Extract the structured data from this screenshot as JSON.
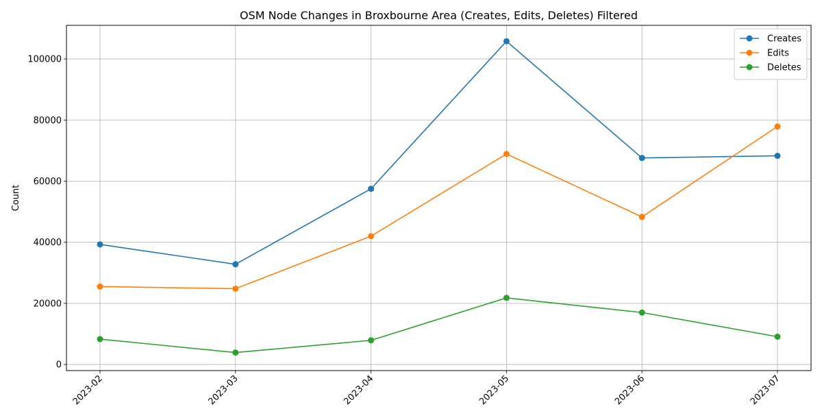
{
  "chart_data": {
    "type": "line",
    "title": "OSM Node Changes in Broxbourne Area (Creates, Edits, Deletes) Filtered",
    "xlabel": "",
    "ylabel": "Count",
    "categories": [
      "2023-02",
      "2023-03",
      "2023-04",
      "2023-05",
      "2023-06",
      "2023-07"
    ],
    "ylim": [
      -2000,
      111000
    ],
    "yticks": [
      0,
      20000,
      40000,
      60000,
      80000,
      100000
    ],
    "ytick_labels": [
      "0",
      "20000",
      "40000",
      "60000",
      "80000",
      "100000"
    ],
    "grid": true,
    "legend_position": "top-right",
    "series": [
      {
        "name": "Creates",
        "color": "#1f77b4",
        "values": [
          39300,
          32800,
          57500,
          105800,
          67600,
          68300
        ]
      },
      {
        "name": "Edits",
        "color": "#ff7f0e",
        "values": [
          25500,
          24800,
          42000,
          68900,
          48300,
          77900
        ]
      },
      {
        "name": "Deletes",
        "color": "#2ca02c",
        "values": [
          8300,
          3900,
          7900,
          21800,
          17000,
          9100
        ]
      }
    ]
  }
}
